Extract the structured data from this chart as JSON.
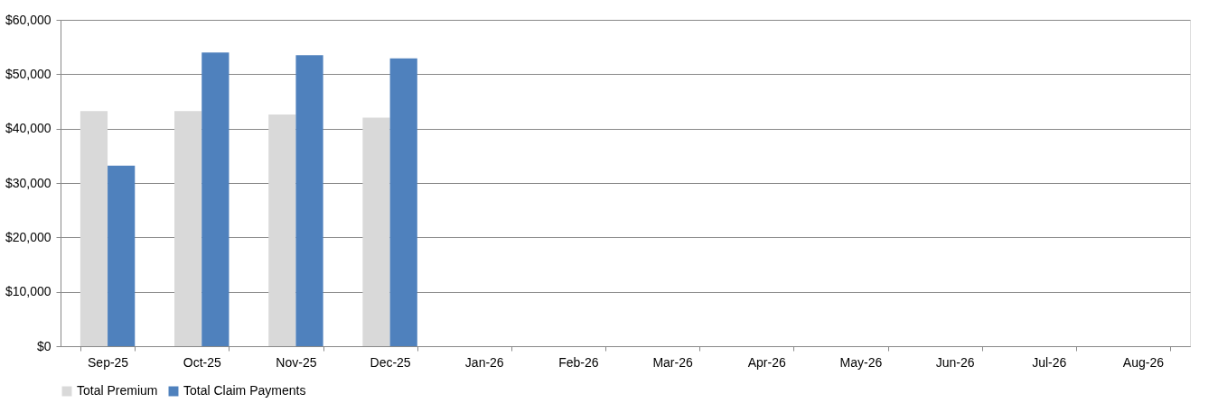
{
  "chart_data": {
    "type": "bar",
    "categories": [
      "Sep-25",
      "Oct-25",
      "Nov-25",
      "Dec-25",
      "Jan-26",
      "Feb-26",
      "Mar-26",
      "Apr-26",
      "May-26",
      "Jun-26",
      "Jul-26",
      "Aug-26"
    ],
    "series": [
      {
        "name": "Total Premium",
        "color": "#d9d9d9",
        "values": [
          43200,
          43200,
          42600,
          42000,
          null,
          null,
          null,
          null,
          null,
          null,
          null,
          null
        ]
      },
      {
        "name": "Total Claim Payments",
        "color": "#4f81bd",
        "values": [
          33200,
          54000,
          53500,
          52900,
          null,
          null,
          null,
          null,
          null,
          null,
          null,
          null
        ]
      }
    ],
    "ylim": [
      0,
      60000
    ],
    "yticks": [
      {
        "value": 0,
        "label": "$0"
      },
      {
        "value": 10000,
        "label": "$10,000"
      },
      {
        "value": 20000,
        "label": "$20,000"
      },
      {
        "value": 30000,
        "label": "$30,000"
      },
      {
        "value": 40000,
        "label": "$40,000"
      },
      {
        "value": 50000,
        "label": "$50,000"
      },
      {
        "value": 60000,
        "label": "$60,000"
      }
    ],
    "grid": "y",
    "legend": "bottom"
  }
}
